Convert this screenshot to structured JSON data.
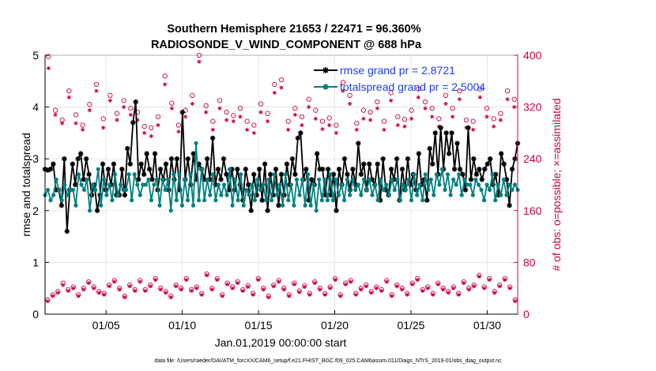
{
  "chart_data": {
    "type": "line",
    "title_line1": "Southern Hemisphere 21653 / 22471 = 96.360%",
    "title_line2": "RADIOSONDE_V_WIND_COMPONENT @ 688 hPa",
    "xlabel": "Jan.01,2019 00:00:00 start",
    "ylabel_left": "rmse and totalspread",
    "ylabel_right": "# of obs: o=possible; ×=assimilated",
    "footnote": "data file: /Users/raeder/DAI/ATM_forcXX/CAM6_setup/f.e21.FHIST_BGC.f09_025.CAM6assim.011/Diags_NTrS_2019-01/obs_diag_output.nc",
    "xlim": [
      1.0,
      32.0
    ],
    "ylim_left": [
      0,
      5
    ],
    "ylim_right": [
      0,
      400
    ],
    "x_ticks": [
      5,
      10,
      15,
      20,
      25,
      30
    ],
    "x_tick_labels": [
      "01/05",
      "01/10",
      "01/15",
      "01/20",
      "01/25",
      "01/30"
    ],
    "y_left_ticks": [
      0,
      1,
      2,
      3,
      4,
      5
    ],
    "y_left_tick_labels": [
      "0",
      "1",
      "2",
      "3",
      "4",
      "5"
    ],
    "y_right_ticks": [
      0,
      80,
      160,
      240,
      320,
      400
    ],
    "y_right_tick_labels": [
      "0",
      "80",
      "160",
      "240",
      "320",
      "400"
    ],
    "colors": {
      "rmse": "#000000",
      "spread": "#008080",
      "obs": "#cc0044",
      "legend_text": "#1a3cff"
    },
    "series": [
      {
        "name": "rmse",
        "legend": "rmse grand pr = 2.8721",
        "marker": "star",
        "values": [
          2.8,
          2.78,
          2.8,
          2.9,
          2.4,
          2.4,
          2.1,
          3.0,
          1.6,
          2.4,
          2.9,
          2.5,
          3.0,
          3.1,
          2.6,
          3.0,
          2.7,
          2.3,
          2.5,
          2.0,
          2.3,
          2.9,
          2.4,
          2.8,
          2.5,
          2.9,
          2.3,
          2.3,
          2.8,
          2.3,
          3.2,
          2.9,
          3.7,
          4.1,
          2.6,
          2.9,
          2.7,
          3.1,
          2.8,
          2.6,
          3.1,
          2.4,
          2.8,
          2.6,
          2.9,
          2.4,
          3.0,
          2.6,
          3.0,
          2.4,
          3.9,
          2.6,
          3.0,
          2.5,
          3.1,
          2.6,
          2.9,
          2.8,
          2.6,
          3.0,
          2.6,
          3.4,
          2.5,
          2.8,
          2.6,
          3.0,
          2.7,
          2.4,
          2.8,
          2.4,
          2.8,
          2.5,
          2.2,
          2.8,
          2.5,
          2.0,
          2.7,
          2.3,
          2.8,
          2.2,
          2.9,
          2.0,
          2.7,
          2.3,
          2.8,
          2.1,
          2.7,
          2.3,
          2.9,
          2.5,
          3.0,
          2.7,
          3.4,
          3.5,
          2.6,
          2.8,
          2.2,
          2.6,
          2.5,
          3.1,
          2.8,
          2.8,
          2.3,
          2.8,
          2.3,
          2.7,
          2.0,
          2.8,
          2.5,
          3.0,
          2.7,
          2.4,
          2.8,
          2.5,
          3.3,
          2.7,
          2.9,
          2.4,
          2.9,
          2.6,
          2.5,
          2.9,
          2.2,
          3.0,
          2.4,
          2.3,
          2.8,
          2.6,
          3.0,
          2.2,
          2.8,
          2.4,
          3.0,
          2.5,
          2.7,
          2.4,
          3.1,
          2.5,
          2.6,
          2.2,
          3.2,
          2.9,
          3.5,
          2.7,
          3.6,
          2.8,
          3.5,
          3.1,
          3.5,
          2.8,
          3.3,
          2.8,
          2.7,
          2.4,
          3.6,
          2.6,
          3.0,
          2.7,
          2.8,
          2.6,
          2.8,
          2.9,
          3.0,
          2.5,
          2.7,
          2.3,
          3.1,
          2.9,
          2.6,
          2.1,
          2.8,
          3.0,
          3.3
        ]
      },
      {
        "name": "totalspread",
        "legend": "totalspread grand pr = 2.5004",
        "marker": "circle",
        "values": [
          2.3,
          2.4,
          2.2,
          2.3,
          2.6,
          2.4,
          2.2,
          2.5,
          2.3,
          2.4,
          2.4,
          2.1,
          2.7,
          2.5,
          2.4,
          2.6,
          2.0,
          2.5,
          2.4,
          2.8,
          2.1,
          2.6,
          2.3,
          2.5,
          2.2,
          2.7,
          2.3,
          2.5,
          2.4,
          2.4,
          2.7,
          2.2,
          2.7,
          2.5,
          2.3,
          2.5,
          2.5,
          2.6,
          2.2,
          2.5,
          2.6,
          2.1,
          2.6,
          2.4,
          2.6,
          2.0,
          2.7,
          2.2,
          2.7,
          2.1,
          2.6,
          2.2,
          2.7,
          2.1,
          3.3,
          2.2,
          2.8,
          2.2,
          2.6,
          2.3,
          2.7,
          2.2,
          2.5,
          2.3,
          2.5,
          2.3,
          2.8,
          2.1,
          2.6,
          2.2,
          2.7,
          2.1,
          2.4,
          2.3,
          2.5,
          2.2,
          2.6,
          2.4,
          2.5,
          2.2,
          2.6,
          2.2,
          2.7,
          2.3,
          2.5,
          2.1,
          2.7,
          2.2,
          2.5,
          2.1,
          2.6,
          2.3,
          2.6,
          2.1,
          2.7,
          2.1,
          2.5,
          2.0,
          2.6,
          2.2,
          2.6,
          2.2,
          2.7,
          2.2,
          2.6,
          2.3,
          2.5,
          2.2,
          2.6,
          2.3,
          2.6,
          2.4,
          2.5,
          2.3,
          2.6,
          2.4,
          2.6,
          2.3,
          2.5,
          2.2,
          2.6,
          2.4,
          2.5,
          2.3,
          2.6,
          2.4,
          2.6,
          2.2,
          2.5,
          2.4,
          2.6,
          2.2,
          2.7,
          2.3,
          2.5,
          2.2,
          2.7,
          2.4,
          2.6,
          2.3,
          2.7,
          2.5,
          2.8,
          2.4,
          2.7,
          2.3,
          2.6,
          2.5,
          2.7,
          2.3,
          2.6,
          2.5,
          2.5,
          2.3,
          2.6,
          2.5,
          2.4,
          2.2,
          2.5,
          2.4,
          2.7,
          2.2,
          2.5,
          2.3,
          2.6,
          2.3,
          2.5,
          2.4,
          2.5,
          2.4
        ]
      },
      {
        "name": "obs_possible_upper",
        "marker": "open-circle",
        "axis": "right",
        "values": [
          398,
          315,
          300,
          345,
          308,
          292,
          324,
          355,
          302,
          338,
          310,
          330,
          318,
          312,
          290,
          288,
          305,
          368,
          326,
          292,
          315,
          338,
          400,
          322,
          298,
          330,
          312,
          307,
          318,
          298,
          292,
          325,
          310,
          355,
          362,
          298,
          318,
          305,
          332,
          315,
          298,
          303,
          292,
          358,
          338,
          295,
          315,
          312,
          328,
          298,
          342,
          305,
          301,
          315,
          348,
          328,
          318,
          302,
          338,
          318,
          345,
          300,
          298,
          348,
          318,
          302,
          310,
          345,
          332
        ]
      },
      {
        "name": "obs_assimilated_upper",
        "marker": "star",
        "axis": "right",
        "values": [
          380,
          308,
          295,
          335,
          295,
          285,
          315,
          345,
          288,
          330,
          300,
          320,
          308,
          300,
          280,
          275,
          292,
          355,
          318,
          282,
          305,
          325,
          390,
          312,
          285,
          318,
          300,
          298,
          305,
          285,
          280,
          312,
          298,
          342,
          350,
          285,
          308,
          292,
          320,
          302,
          286,
          292,
          280,
          345,
          325,
          285,
          302,
          300,
          318,
          285,
          330,
          292,
          290,
          302,
          335,
          318,
          305,
          290,
          325,
          305,
          332,
          288,
          285,
          335,
          305,
          290,
          300,
          332,
          320
        ]
      },
      {
        "name": "obs_possible_lower",
        "marker": "open-circle",
        "axis": "right",
        "values": [
          22,
          30,
          35,
          48,
          38,
          42,
          30,
          40,
          50,
          42,
          35,
          32,
          45,
          52,
          40,
          28,
          45,
          38,
          52,
          38,
          45,
          55,
          40,
          35,
          28,
          45,
          40,
          55,
          38,
          42,
          32,
          62,
          40,
          55,
          30,
          48,
          42,
          50,
          38,
          44,
          32,
          55,
          40,
          28,
          45,
          52,
          40,
          30,
          48,
          36,
          44,
          32,
          50,
          40,
          32,
          42,
          55,
          30,
          48,
          52,
          32,
          40,
          45,
          35,
          42,
          38,
          52,
          30,
          45,
          40,
          32,
          48,
          55,
          38,
          42,
          32,
          48,
          40,
          35,
          42,
          32,
          50,
          40,
          45,
          60,
          42,
          55,
          35,
          45,
          55,
          42,
          22
        ]
      },
      {
        "name": "obs_assimilated_lower",
        "marker": "star",
        "axis": "right",
        "values": [
          20,
          28,
          33,
          45,
          36,
          40,
          28,
          38,
          48,
          40,
          33,
          30,
          43,
          50,
          38,
          26,
          43,
          36,
          50,
          36,
          43,
          53,
          38,
          33,
          26,
          43,
          38,
          53,
          36,
          40,
          30,
          60,
          38,
          53,
          28,
          46,
          40,
          48,
          36,
          42,
          30,
          53,
          38,
          26,
          43,
          50,
          38,
          28,
          46,
          34,
          42,
          30,
          48,
          38,
          30,
          40,
          53,
          28,
          46,
          50,
          30,
          38,
          43,
          33,
          40,
          36,
          50,
          28,
          43,
          38,
          30,
          46,
          53,
          36,
          40,
          30,
          46,
          38,
          33,
          40,
          30,
          48,
          38,
          43,
          58,
          40,
          53,
          33,
          43,
          53,
          40,
          20
        ]
      }
    ]
  }
}
